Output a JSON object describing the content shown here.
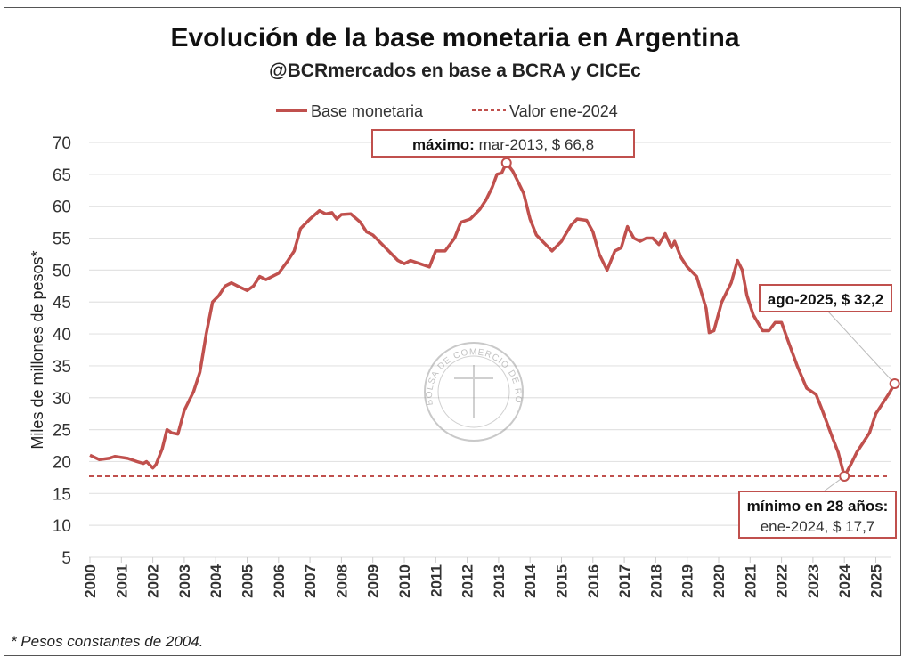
{
  "chart_data": {
    "type": "line",
    "title": "Evolución de la base monetaria en Argentina",
    "subtitle": "@BCRmercados en base a BCRA y CICEc",
    "ylabel": "Miles de millones de pesos*",
    "xlabel": "",
    "ylim": [
      5,
      70
    ],
    "yticks": [
      5,
      10,
      15,
      20,
      25,
      30,
      35,
      40,
      45,
      50,
      55,
      60,
      65,
      70
    ],
    "xticks": [
      "2000",
      "2001",
      "2002",
      "2003",
      "2004",
      "2005",
      "2006",
      "2007",
      "2008",
      "2009",
      "2010",
      "2011",
      "2012",
      "2013",
      "2014",
      "2015",
      "2016",
      "2017",
      "2018",
      "2019",
      "2020",
      "2021",
      "2022",
      "2023",
      "2024",
      "2025"
    ],
    "grid": "horizontal",
    "legend_placement": "top",
    "series": [
      {
        "name": "Base monetaria",
        "color": "#c0504d",
        "style": "solid",
        "x": [
          2000.0,
          2000.3,
          2000.6,
          2000.8,
          2001.2,
          2001.5,
          2001.7,
          2001.8,
          2002.0,
          2002.1,
          2002.3,
          2002.45,
          2002.6,
          2002.8,
          2003.0,
          2003.3,
          2003.5,
          2003.7,
          2003.9,
          2004.1,
          2004.3,
          2004.5,
          2004.7,
          2005.0,
          2005.2,
          2005.4,
          2005.6,
          2005.8,
          2006.0,
          2006.3,
          2006.5,
          2006.7,
          2007.0,
          2007.3,
          2007.5,
          2007.7,
          2007.85,
          2008.0,
          2008.3,
          2008.6,
          2008.8,
          2009.0,
          2009.3,
          2009.6,
          2009.8,
          2010.0,
          2010.2,
          2010.5,
          2010.8,
          2011.0,
          2011.3,
          2011.6,
          2011.8,
          2012.1,
          2012.4,
          2012.6,
          2012.8,
          2012.95,
          2013.1,
          2013.25,
          2013.45,
          2013.6,
          2013.8,
          2014.0,
          2014.2,
          2014.5,
          2014.7,
          2015.0,
          2015.3,
          2015.5,
          2015.8,
          2016.0,
          2016.2,
          2016.45,
          2016.7,
          2016.9,
          2017.1,
          2017.3,
          2017.5,
          2017.7,
          2017.9,
          2018.1,
          2018.3,
          2018.5,
          2018.6,
          2018.8,
          2019.0,
          2019.3,
          2019.6,
          2019.7,
          2019.85,
          2020.1,
          2020.4,
          2020.6,
          2020.75,
          2020.9,
          2021.1,
          2021.4,
          2021.6,
          2021.8,
          2022.0,
          2022.2,
          2022.5,
          2022.8,
          2023.1,
          2023.3,
          2023.6,
          2023.8,
          2024.0,
          2024.2,
          2024.4,
          2024.6,
          2024.8,
          2025.0,
          2025.2,
          2025.4,
          2025.6
        ],
        "values": [
          21,
          20.3,
          20.5,
          20.8,
          20.5,
          20,
          19.7,
          20,
          19,
          19.5,
          22,
          25,
          24.5,
          24.3,
          28,
          31,
          34,
          40,
          45,
          46,
          47.5,
          48,
          47.5,
          46.8,
          47.5,
          49,
          48.5,
          49,
          49.5,
          51.5,
          53,
          56.5,
          58,
          59.3,
          58.8,
          59,
          58,
          58.7,
          58.8,
          57.5,
          56,
          55.5,
          54,
          52.5,
          51.5,
          51,
          51.5,
          51,
          50.5,
          53,
          53,
          55,
          57.5,
          58,
          59.5,
          61,
          63,
          65,
          65.2,
          66.8,
          65.5,
          64,
          62,
          58,
          55.5,
          54,
          53,
          54.5,
          57,
          58,
          57.8,
          56,
          52.5,
          50,
          53,
          53.5,
          56.8,
          55,
          54.5,
          55,
          55,
          54,
          55.7,
          53.5,
          54.5,
          52,
          50.5,
          49,
          44,
          40.2,
          40.5,
          45,
          48,
          51.5,
          50,
          46,
          43,
          40.5,
          40.5,
          41.8,
          41.8,
          39,
          35,
          31.5,
          30.5,
          28,
          24,
          21.5,
          17.7,
          19.5,
          21.5,
          23,
          24.5,
          27.5,
          29,
          30.5,
          32.2
        ]
      },
      {
        "name": "Valor ene-2024",
        "color": "#c0504d",
        "style": "dashed",
        "value": 17.7
      }
    ],
    "annotations": {
      "max": {
        "x": 2013.25,
        "y": 66.8,
        "bold": "máximo:",
        "text": "mar-2013, $ 66,8"
      },
      "last": {
        "x": 2025.6,
        "y": 32.2,
        "text": "ago-2025, $ 32,2"
      },
      "min": {
        "x": 2024.0,
        "y": 17.7,
        "bold": "mínimo en 28 años:",
        "text": "ene-2024, $ 17,7"
      }
    },
    "footnote": "* Pesos constantes de 2004.",
    "watermark": "BOLSA DE COMERCIO DE ROSARIO"
  }
}
